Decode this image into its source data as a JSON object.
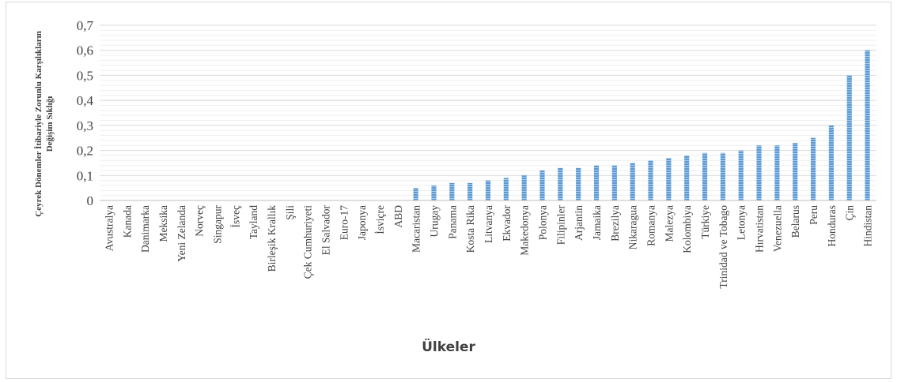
{
  "chart_data": {
    "type": "bar",
    "xlabel": "Ülkeler",
    "ylabel_lines": [
      "Çeyrek Dönemler İtibariyle Zorunlu Karşılıkların",
      "Değişim Sıklığı"
    ],
    "ylim": [
      0,
      0.7
    ],
    "yticks": [
      "0",
      "0,1",
      "0,2",
      "0,3",
      "0,4",
      "0,5",
      "0,6",
      "0,7"
    ],
    "grid": true,
    "bar_color": "#5b9bd5",
    "categories": [
      "Avustralya",
      "Kanada",
      "Danimarka",
      "Meksika",
      "Yeni Zelanda",
      "Norveç",
      "Singapur",
      "İsveç",
      "Tayland",
      "Birleşik Krallık",
      "Şili",
      "Çek Cumhuriyeti",
      "El Salvador",
      "Euro-17",
      "Japonya",
      "İsviçre",
      "ABD",
      "Macaristan",
      "Urugay",
      "Panama",
      "Kosta Rika",
      "Litvanya",
      "Ekvador",
      "Makedonya",
      "Polonya",
      "Filipinler",
      "Arjantin",
      "Jamaika",
      "Brezilya",
      "Nikaragua",
      "Romanya",
      "Malezya",
      "Kolombiya",
      "Türkiye",
      "Trinidad ve Tobago",
      "Letonya",
      "Hırvatistan",
      "Venezuella",
      "Belarus",
      "Peru",
      "Honduras",
      "Çin",
      "Hindistan"
    ],
    "values": [
      0,
      0,
      0,
      0,
      0,
      0,
      0,
      0,
      0,
      0,
      0,
      0,
      0,
      0,
      0,
      0,
      0,
      0.05,
      0.06,
      0.07,
      0.07,
      0.08,
      0.09,
      0.1,
      0.12,
      0.13,
      0.13,
      0.14,
      0.14,
      0.15,
      0.16,
      0.17,
      0.18,
      0.19,
      0.19,
      0.2,
      0.22,
      0.22,
      0.23,
      0.25,
      0.3,
      0.5,
      0.6
    ]
  }
}
